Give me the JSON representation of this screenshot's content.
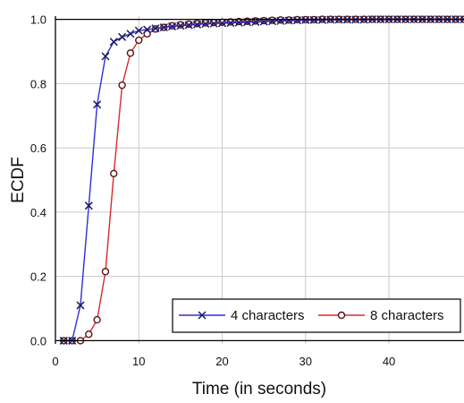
{
  "chart_data": {
    "type": "line",
    "title": "",
    "xlabel": "Time (in seconds)",
    "ylabel": "ECDF",
    "xlim": [
      0,
      49
    ],
    "ylim": [
      -0.01,
      1.01
    ],
    "xticks": [
      0,
      10,
      20,
      30,
      40
    ],
    "yticks": [
      0.0,
      0.2,
      0.4,
      0.6,
      0.8,
      1.0
    ],
    "xtick_labels": [
      "0",
      "10",
      "20",
      "30",
      "40"
    ],
    "ytick_labels": [
      "0.0",
      "0.2",
      "0.4",
      "0.6",
      "0.8",
      "1.0"
    ],
    "grid": true,
    "legend_position": "bottom-right",
    "series": [
      {
        "name": "4 characters",
        "color": "#2f2fd6",
        "marker": "x",
        "points": [
          [
            1,
            0.0
          ],
          [
            2,
            0.0
          ],
          [
            3,
            0.11
          ],
          [
            4,
            0.42
          ],
          [
            5,
            0.735
          ],
          [
            6,
            0.885
          ],
          [
            7,
            0.93
          ],
          [
            8,
            0.945
          ],
          [
            9,
            0.955
          ],
          [
            10,
            0.965
          ],
          [
            11,
            0.968
          ],
          [
            12,
            0.972
          ],
          [
            13,
            0.975
          ],
          [
            14,
            0.978
          ],
          [
            15,
            0.98
          ],
          [
            16,
            0.982
          ],
          [
            17,
            0.984
          ],
          [
            18,
            0.986
          ],
          [
            19,
            0.987
          ],
          [
            20,
            0.988
          ],
          [
            21,
            0.989
          ],
          [
            22,
            0.99
          ],
          [
            23,
            0.991
          ],
          [
            24,
            0.992
          ],
          [
            25,
            0.993
          ],
          [
            26,
            0.994
          ],
          [
            27,
            0.995
          ],
          [
            28,
            0.996
          ],
          [
            29,
            0.997
          ],
          [
            30,
            0.998
          ],
          [
            31,
            0.998
          ],
          [
            32,
            0.998
          ],
          [
            33,
            0.999
          ],
          [
            34,
            0.999
          ],
          [
            35,
            0.999
          ],
          [
            36,
            0.999
          ],
          [
            37,
            0.999
          ],
          [
            38,
            1.0
          ],
          [
            39,
            1.0
          ],
          [
            40,
            1.0
          ],
          [
            41,
            1.0
          ],
          [
            42,
            1.0
          ],
          [
            43,
            1.0
          ],
          [
            44,
            1.0
          ],
          [
            45,
            1.0
          ],
          [
            46,
            1.0
          ],
          [
            47,
            1.0
          ],
          [
            48,
            1.0
          ],
          [
            49,
            1.0
          ]
        ]
      },
      {
        "name": "8 characters",
        "color": "#d62b2b",
        "marker": "o",
        "points": [
          [
            1,
            0.0
          ],
          [
            2,
            0.0
          ],
          [
            3,
            0.0
          ],
          [
            4,
            0.02
          ],
          [
            5,
            0.065
          ],
          [
            6,
            0.215
          ],
          [
            7,
            0.52
          ],
          [
            8,
            0.795
          ],
          [
            9,
            0.895
          ],
          [
            10,
            0.935
          ],
          [
            11,
            0.955
          ],
          [
            12,
            0.97
          ],
          [
            13,
            0.975
          ],
          [
            14,
            0.98
          ],
          [
            15,
            0.983
          ],
          [
            16,
            0.985
          ],
          [
            17,
            0.987
          ],
          [
            18,
            0.989
          ],
          [
            19,
            0.99
          ],
          [
            20,
            0.991
          ],
          [
            21,
            0.992
          ],
          [
            22,
            0.993
          ],
          [
            23,
            0.994
          ],
          [
            24,
            0.995
          ],
          [
            25,
            0.996
          ],
          [
            26,
            0.997
          ],
          [
            27,
            0.998
          ],
          [
            28,
            0.998
          ],
          [
            29,
            0.999
          ],
          [
            30,
            0.999
          ],
          [
            31,
            0.999
          ],
          [
            32,
            1.0
          ],
          [
            33,
            1.0
          ],
          [
            34,
            1.0
          ],
          [
            35,
            1.0
          ],
          [
            36,
            1.0
          ],
          [
            37,
            1.0
          ],
          [
            38,
            1.0
          ],
          [
            39,
            1.0
          ],
          [
            40,
            1.0
          ],
          [
            41,
            1.0
          ],
          [
            42,
            1.0
          ],
          [
            43,
            1.0
          ],
          [
            44,
            1.0
          ],
          [
            45,
            1.0
          ],
          [
            46,
            1.0
          ],
          [
            47,
            1.0
          ],
          [
            48,
            1.0
          ],
          [
            49,
            1.0
          ]
        ]
      }
    ]
  }
}
